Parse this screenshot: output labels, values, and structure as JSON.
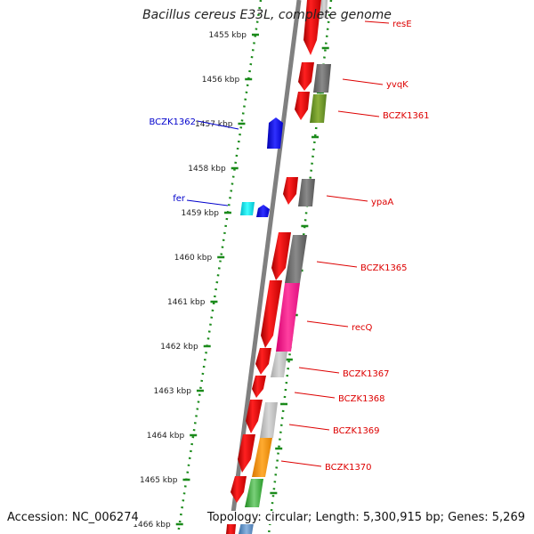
{
  "title": "Bacillus cereus E33L, complete genome",
  "accession_label": "Accession: NC_006274",
  "topology_label": "Topology: circular; Length: 5,300,915 bp; Genes: 5,269",
  "colors": {
    "backbone": "#808080",
    "dotted_track": "#1a8a1a",
    "label_red": "#dd0000",
    "label_blue": "#0000cc",
    "leader_red": "#dd0000",
    "leader_blue": "#0000cc"
  },
  "ticks": [
    {
      "label": "1455 kbp"
    },
    {
      "label": "1456 kbp"
    },
    {
      "label": "1457 kbp"
    },
    {
      "label": "1458 kbp"
    },
    {
      "label": "1459 kbp"
    },
    {
      "label": "1460 kbp"
    },
    {
      "label": "1461 kbp"
    },
    {
      "label": "1462 kbp"
    },
    {
      "label": "1463 kbp"
    },
    {
      "label": "1464 kbp"
    },
    {
      "label": "1465 kbp"
    },
    {
      "label": "1466 kbp"
    }
  ],
  "gene_labels": [
    {
      "name": "resE",
      "strand": "forward"
    },
    {
      "name": "yvqK",
      "strand": "forward"
    },
    {
      "name": "BCZK1361",
      "strand": "forward"
    },
    {
      "name": "BCZK1362",
      "strand": "reverse"
    },
    {
      "name": "ypaA",
      "strand": "forward"
    },
    {
      "name": "fer",
      "strand": "reverse"
    },
    {
      "name": "BCZK1365",
      "strand": "forward"
    },
    {
      "name": "recQ",
      "strand": "forward"
    },
    {
      "name": "BCZK1367",
      "strand": "forward"
    },
    {
      "name": "BCZK1368",
      "strand": "forward"
    },
    {
      "name": "BCZK1369",
      "strand": "forward"
    },
    {
      "name": "BCZK1370",
      "strand": "forward"
    }
  ]
}
